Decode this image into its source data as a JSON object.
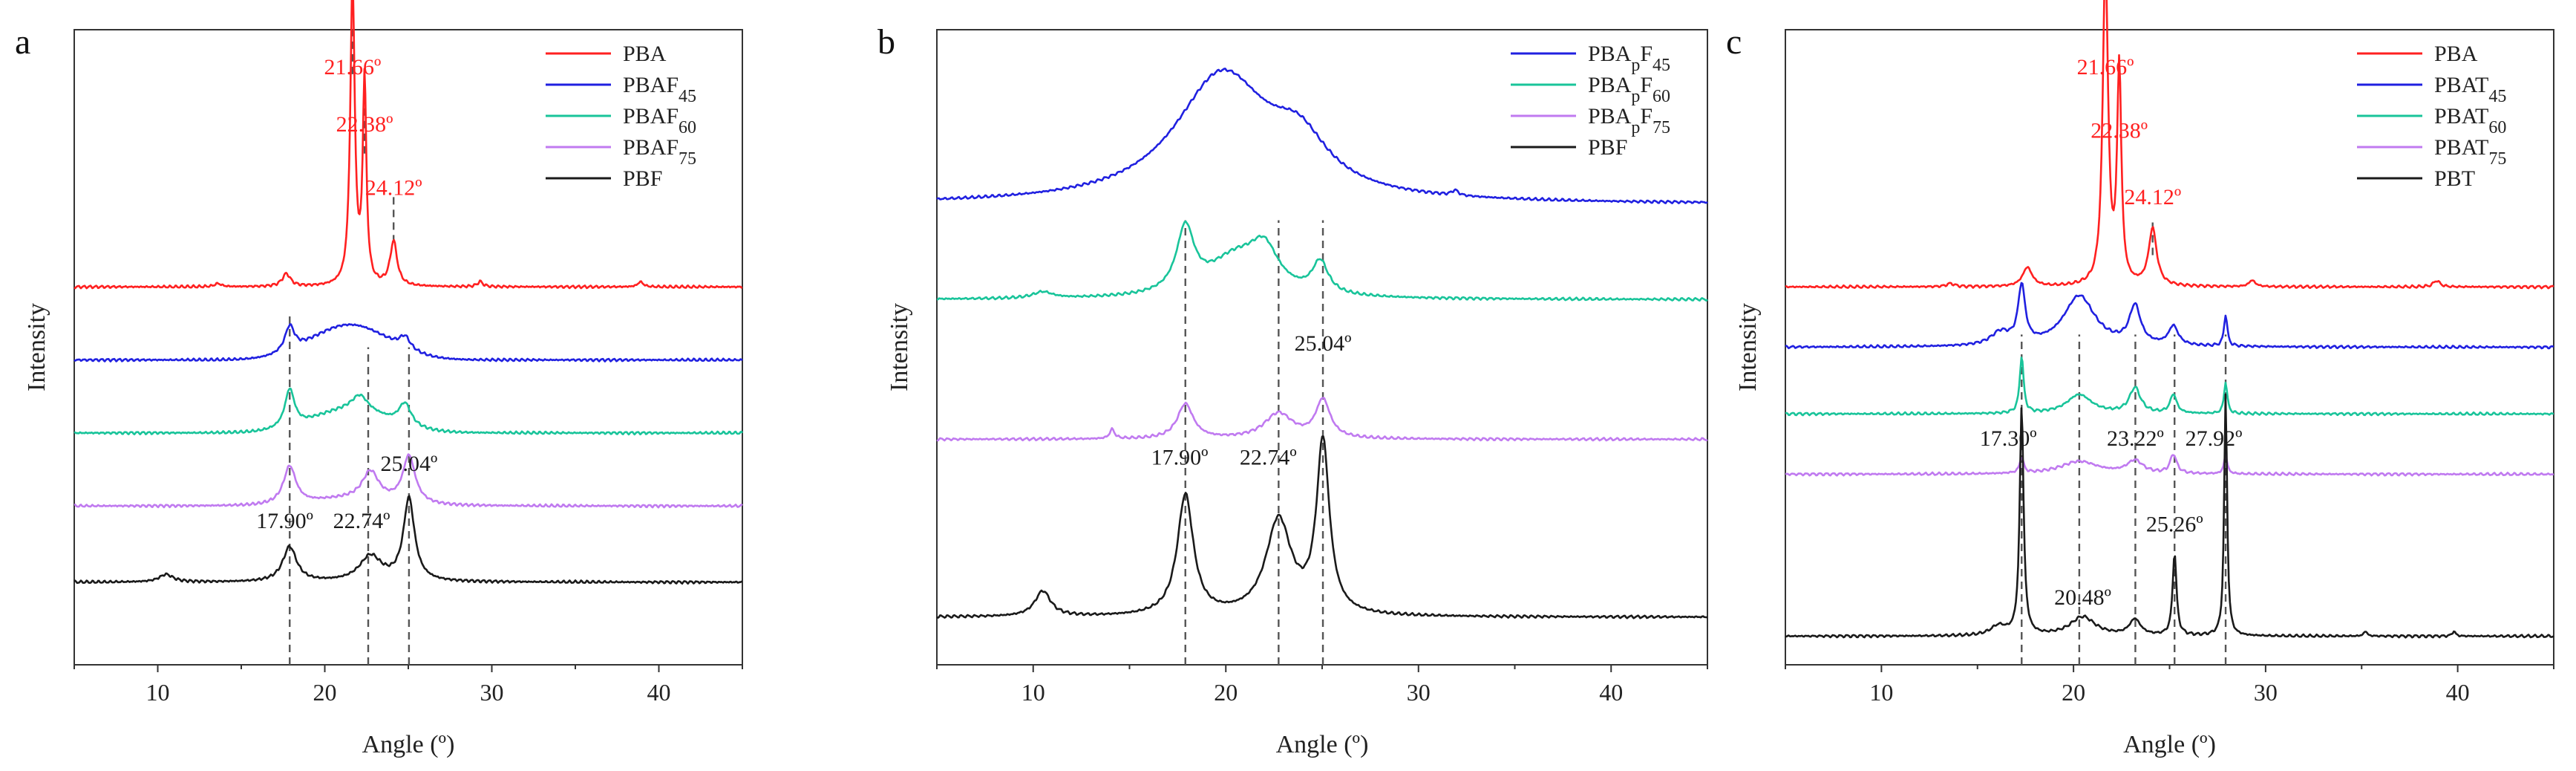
{
  "chart_data": [
    {
      "panel_label": "a",
      "type": "line",
      "xlabel": "Angle (º)",
      "ylabel": "Intensity",
      "xlim": [
        5,
        45
      ],
      "xticks": [
        "10",
        "20",
        "30",
        "40"
      ],
      "legend": {
        "position": "top-right",
        "entries": [
          {
            "base": "PBA",
            "sub": ""
          },
          {
            "base": "PBAF",
            "sub": "45"
          },
          {
            "base": "PBAF",
            "sub": "60"
          },
          {
            "base": "PBAF",
            "sub": "75"
          },
          {
            "base": "PBF",
            "sub": ""
          }
        ]
      },
      "series": [
        {
          "name": "PBA",
          "color": "#ff2020",
          "baseline": 0.595,
          "bump": 0.0,
          "peaks": [
            [
              13.6,
              0.005,
              0.25
            ],
            [
              17.7,
              0.02,
              0.3
            ],
            [
              21.66,
              0.48,
              0.16
            ],
            [
              22.38,
              0.32,
              0.13
            ],
            [
              24.12,
              0.07,
              0.25
            ],
            [
              29.3,
              0.008,
              0.2
            ],
            [
              38.9,
              0.008,
              0.2
            ]
          ]
        },
        {
          "name": "PBAF45",
          "color": "#2020e0",
          "baseline": 0.48,
          "bump": 0.055,
          "peaks": [
            [
              17.9,
              0.04,
              0.35
            ],
            [
              24.8,
              0.02,
              0.4
            ]
          ]
        },
        {
          "name": "PBAF60",
          "color": "#19c49a",
          "baseline": 0.365,
          "bump": 0.035,
          "peaks": [
            [
              17.9,
              0.06,
              0.35
            ],
            [
              22.1,
              0.025,
              0.6
            ],
            [
              24.8,
              0.035,
              0.45
            ]
          ]
        },
        {
          "name": "PBAF75",
          "color": "#c07af0",
          "baseline": 0.25,
          "bump": 0.01,
          "peaks": [
            [
              17.9,
              0.06,
              0.45
            ],
            [
              22.74,
              0.045,
              0.6
            ],
            [
              25.04,
              0.075,
              0.45
            ]
          ]
        },
        {
          "name": "PBF",
          "color": "#1a1a1a",
          "baseline": 0.13,
          "bump": 0.0,
          "peaks": [
            [
              10.5,
              0.012,
              0.5
            ],
            [
              17.9,
              0.055,
              0.5
            ],
            [
              22.74,
              0.04,
              0.8
            ],
            [
              25.04,
              0.13,
              0.4
            ]
          ]
        }
      ],
      "annotations": [
        {
          "text": "21.66º",
          "x": 21.66,
          "y": 0.93,
          "color": "#ff2020"
        },
        {
          "text": "22.38º",
          "x": 22.38,
          "y": 0.84,
          "color": "#ff2020"
        },
        {
          "text": "24.12º",
          "x": 24.12,
          "y": 0.74,
          "color": "#ff2020"
        },
        {
          "text": "17.90º",
          "x": 17.6,
          "y": 0.215,
          "color": "#1a1a1a"
        },
        {
          "text": "22.74º",
          "x": 22.2,
          "y": 0.215,
          "color": "#1a1a1a"
        },
        {
          "text": "25.04º",
          "x": 25.04,
          "y": 0.305,
          "color": "#1a1a1a"
        }
      ],
      "dashed_lines": [
        {
          "x": 21.66,
          "y0": 0.93,
          "y1": 1.0
        },
        {
          "x": 22.38,
          "y0": 0.805,
          "y1": 0.9
        },
        {
          "x": 24.12,
          "y0": 0.665,
          "y1": 0.74
        },
        {
          "x": 17.9,
          "y0": 0.0,
          "y1": 0.55
        },
        {
          "x": 22.6,
          "y0": 0.0,
          "y1": 0.5
        },
        {
          "x": 25.04,
          "y0": 0.0,
          "y1": 0.5
        }
      ]
    },
    {
      "panel_label": "b",
      "type": "line",
      "xlabel": "Angle (º)",
      "ylabel": "Intensity",
      "xlim": [
        5,
        45
      ],
      "xticks": [
        "10",
        "20",
        "30",
        "40"
      ],
      "legend": {
        "position": "top-right",
        "entries": [
          {
            "base": "PBA",
            "sub": "p",
            "base2": "F",
            "sub2": "45"
          },
          {
            "base": "PBA",
            "sub": "p",
            "base2": "F",
            "sub2": "60"
          },
          {
            "base": "PBA",
            "sub": "p",
            "base2": "F",
            "sub2": "75"
          },
          {
            "base": "PBF",
            "sub": ""
          }
        ]
      },
      "series": [
        {
          "name": "PBApF45",
          "color": "#2020e0",
          "baseline": 0.725,
          "bump": 0.0,
          "peaks": [
            [
              19.8,
              0.2,
              3.0
            ],
            [
              23.8,
              0.07,
              1.8
            ],
            [
              31.9,
              0.008,
              0.2
            ]
          ]
        },
        {
          "name": "PBApF60",
          "color": "#19c49a",
          "baseline": 0.575,
          "bump": 0.0,
          "peaks": [
            [
              10.5,
              0.01,
              0.6
            ],
            [
              17.9,
              0.1,
              0.55
            ],
            [
              20.5,
              0.06,
              1.8
            ],
            [
              22.0,
              0.06,
              0.9
            ],
            [
              24.9,
              0.05,
              0.5
            ]
          ]
        },
        {
          "name": "PBApF75",
          "color": "#c07af0",
          "baseline": 0.355,
          "bump": 0.0,
          "peaks": [
            [
              14.1,
              0.015,
              0.15
            ],
            [
              17.9,
              0.055,
              0.5
            ],
            [
              22.74,
              0.04,
              0.9
            ],
            [
              25.04,
              0.06,
              0.45
            ]
          ]
        },
        {
          "name": "PBF",
          "color": "#1a1a1a",
          "baseline": 0.075,
          "bump": 0.0,
          "peaks": [
            [
              10.5,
              0.04,
              0.5
            ],
            [
              17.9,
              0.19,
              0.5
            ],
            [
              22.74,
              0.15,
              0.8
            ],
            [
              25.04,
              0.27,
              0.4
            ]
          ]
        }
      ],
      "annotations": [
        {
          "text": "25.04º",
          "x": 25.04,
          "y": 0.495,
          "color": "#1a1a1a"
        },
        {
          "text": "17.90º",
          "x": 17.6,
          "y": 0.315,
          "color": "#1a1a1a"
        },
        {
          "text": "22.74º",
          "x": 22.2,
          "y": 0.315,
          "color": "#1a1a1a"
        }
      ],
      "dashed_lines": [
        {
          "x": 17.9,
          "y0": 0.0,
          "y1": 0.7
        },
        {
          "x": 22.74,
          "y0": 0.0,
          "y1": 0.7
        },
        {
          "x": 25.04,
          "y0": 0.0,
          "y1": 0.7
        }
      ]
    },
    {
      "panel_label": "c",
      "type": "line",
      "xlabel": "Angle (º)",
      "ylabel": "Intensity",
      "xlim": [
        5,
        45
      ],
      "xticks": [
        "10",
        "20",
        "30",
        "40"
      ],
      "legend": {
        "position": "top-right",
        "entries": [
          {
            "base": "PBA",
            "sub": ""
          },
          {
            "base": "PBAT",
            "sub": "45"
          },
          {
            "base": "PBAT",
            "sub": "60"
          },
          {
            "base": "PBAT",
            "sub": "75"
          },
          {
            "base": "PBT",
            "sub": ""
          }
        ]
      },
      "series": [
        {
          "name": "PBA",
          "color": "#ff2020",
          "baseline": 0.595,
          "bump": 0.0,
          "peaks": [
            [
              13.6,
              0.005,
              0.25
            ],
            [
              17.6,
              0.03,
              0.3
            ],
            [
              21.66,
              0.52,
              0.16
            ],
            [
              22.38,
              0.34,
              0.13
            ],
            [
              24.12,
              0.09,
              0.25
            ],
            [
              29.3,
              0.01,
              0.2
            ],
            [
              38.9,
              0.01,
              0.2
            ]
          ]
        },
        {
          "name": "PBAT45",
          "color": "#2020e0",
          "baseline": 0.5,
          "bump": 0.0,
          "peaks": [
            [
              16.2,
              0.02,
              0.6
            ],
            [
              17.3,
              0.09,
              0.22
            ],
            [
              20.3,
              0.08,
              1.0
            ],
            [
              23.2,
              0.06,
              0.35
            ],
            [
              25.2,
              0.03,
              0.3
            ],
            [
              27.92,
              0.05,
              0.1
            ]
          ]
        },
        {
          "name": "PBAT60",
          "color": "#19c49a",
          "baseline": 0.395,
          "bump": 0.0,
          "peaks": [
            [
              17.3,
              0.09,
              0.12
            ],
            [
              20.3,
              0.03,
              0.8
            ],
            [
              23.2,
              0.04,
              0.35
            ],
            [
              25.2,
              0.03,
              0.2
            ],
            [
              27.92,
              0.05,
              0.1
            ]
          ]
        },
        {
          "name": "PBAT75",
          "color": "#c07af0",
          "baseline": 0.3,
          "bump": 0.0,
          "peaks": [
            [
              17.3,
              0.025,
              0.12
            ],
            [
              20.3,
              0.02,
              1.2
            ],
            [
              23.2,
              0.02,
              0.5
            ],
            [
              25.2,
              0.03,
              0.2
            ],
            [
              27.92,
              0.03,
              0.1
            ]
          ]
        },
        {
          "name": "PBT",
          "color": "#1a1a1a",
          "baseline": 0.045,
          "bump": 0.0,
          "peaks": [
            [
              16.1,
              0.015,
              0.5
            ],
            [
              17.3,
              0.36,
              0.12
            ],
            [
              20.48,
              0.03,
              0.8
            ],
            [
              23.2,
              0.025,
              0.35
            ],
            [
              25.26,
              0.13,
              0.12
            ],
            [
              27.92,
              0.38,
              0.09
            ],
            [
              35.2,
              0.008,
              0.1
            ],
            [
              39.8,
              0.008,
              0.1
            ]
          ]
        }
      ],
      "annotations": [
        {
          "text": "21.66º",
          "x": 21.66,
          "y": 0.93,
          "color": "#ff2020"
        },
        {
          "text": "22.38º",
          "x": 22.38,
          "y": 0.83,
          "color": "#ff2020"
        },
        {
          "text": "24.12º",
          "x": 24.12,
          "y": 0.725,
          "color": "#ff2020"
        },
        {
          "text": "17.30º",
          "x": 16.6,
          "y": 0.345,
          "color": "#1a1a1a"
        },
        {
          "text": "23.22º",
          "x": 23.22,
          "y": 0.345,
          "color": "#1a1a1a"
        },
        {
          "text": "27.92º",
          "x": 27.3,
          "y": 0.345,
          "color": "#1a1a1a"
        },
        {
          "text": "25.26º",
          "x": 25.26,
          "y": 0.21,
          "color": "#1a1a1a"
        },
        {
          "text": "20.48º",
          "x": 20.48,
          "y": 0.095,
          "color": "#1a1a1a"
        }
      ],
      "dashed_lines": [
        {
          "x": 24.12,
          "y0": 0.645,
          "y1": 0.7
        },
        {
          "x": 17.3,
          "y0": 0.0,
          "y1": 0.52
        },
        {
          "x": 20.3,
          "y0": 0.0,
          "y1": 0.52
        },
        {
          "x": 23.22,
          "y0": 0.0,
          "y1": 0.52
        },
        {
          "x": 25.26,
          "y0": 0.0,
          "y1": 0.52
        },
        {
          "x": 27.92,
          "y0": 0.0,
          "y1": 0.52
        }
      ]
    }
  ]
}
